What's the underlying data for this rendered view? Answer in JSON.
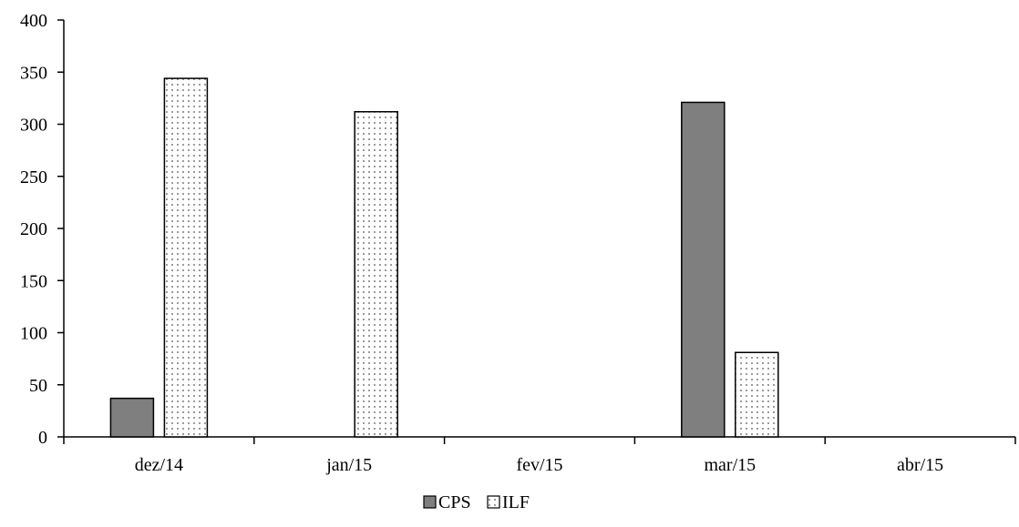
{
  "chart_data": {
    "type": "bar",
    "title": "",
    "xlabel": "",
    "ylabel": "",
    "categories": [
      "dez/14",
      "jan/15",
      "fev/15",
      "mar/15",
      "abr/15"
    ],
    "series": [
      {
        "name": "CPS",
        "values": [
          37,
          0,
          0,
          321,
          0
        ],
        "color": "#7f7f7f",
        "pattern": "solid"
      },
      {
        "name": "ILF",
        "values": [
          344,
          312,
          0,
          81,
          0
        ],
        "color": "#ffffff",
        "pattern": "dots"
      }
    ],
    "ylim": [
      0,
      400
    ],
    "yticks": [
      "0",
      "50",
      "100",
      "150",
      "200",
      "250",
      "300",
      "350",
      "400"
    ],
    "grid": false,
    "legend_position": "bottom-center"
  }
}
